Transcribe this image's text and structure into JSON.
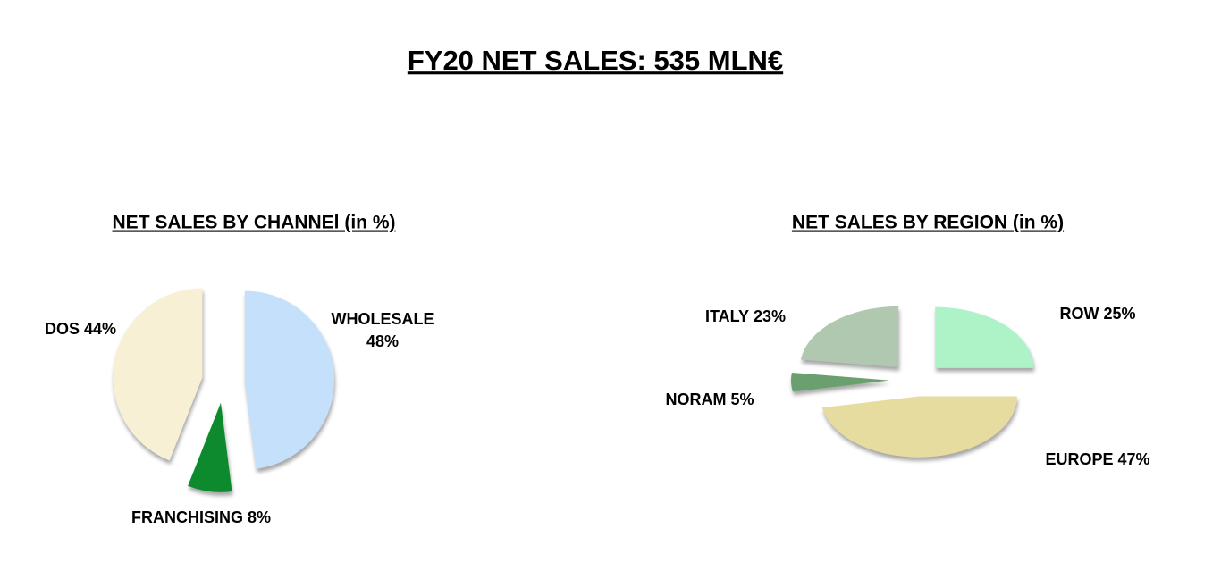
{
  "title": "FY20 NET SALES: 535 MLN€",
  "chart_data": [
    {
      "type": "pie",
      "title": "NET SALES BY CHANNEl  (in %)",
      "categories": [
        "WHOLESALE",
        "FRANCHISING",
        "DOS"
      ],
      "values": [
        48,
        8,
        44
      ],
      "value_labels": [
        "48%",
        "8%",
        "44%"
      ],
      "colors": [
        "#c5e0fa",
        "#0e8a2e",
        "#f7f0d5"
      ]
    },
    {
      "type": "pie",
      "title": "NET SALES BY REGION (in %)",
      "categories": [
        "ROW",
        "EUROPE",
        "NORAM",
        "ITALY"
      ],
      "values": [
        25,
        47,
        5,
        23
      ],
      "value_labels": [
        "25%",
        "47%",
        "5%",
        "23%"
      ],
      "colors": [
        "#aef2c8",
        "#e6dca0",
        "#6aa070",
        "#b1c8b0"
      ]
    }
  ]
}
